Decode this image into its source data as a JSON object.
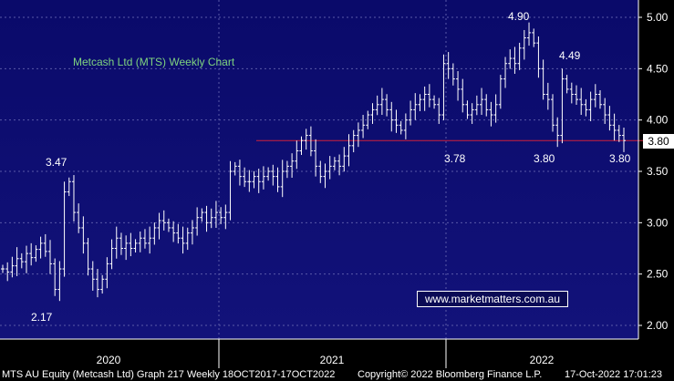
{
  "chart_data": {
    "type": "bar",
    "subtype": "ohlc-weekly",
    "title": "Metcash Ltd (MTS) Weekly Chart",
    "ylim": [
      2.0,
      5.0
    ],
    "y_ticks": [
      "5.00",
      "4.50",
      "4.00",
      "3.50",
      "3.00",
      "2.50",
      "2.00"
    ],
    "x_ticks": [
      "2020",
      "2021",
      "2022"
    ],
    "grid": true,
    "legend": "none",
    "support_level": 3.8,
    "last_price_label": "3.80",
    "annotations": [
      "3.47",
      "2.17",
      "4.90",
      "4.49",
      "3.78",
      "3.80",
      "3.80"
    ],
    "series": [
      {
        "values": [
          2.55,
          2.52,
          2.58,
          2.65,
          2.62,
          2.7,
          2.66,
          2.74,
          2.8,
          2.72,
          2.6,
          2.35,
          2.55,
          3.3,
          3.4,
          3.1,
          2.95,
          2.8,
          2.55,
          2.45,
          2.35,
          2.45,
          2.6,
          2.75,
          2.85,
          2.75,
          2.8,
          2.75,
          2.8,
          2.85,
          2.8,
          2.85,
          2.95,
          3.02,
          3.0,
          2.95,
          2.9,
          2.85,
          2.8,
          2.9,
          2.95,
          3.05,
          3.1,
          3.0,
          3.05,
          3.1,
          3.05,
          3.1,
          3.5,
          3.55,
          3.45,
          3.4,
          3.4,
          3.45,
          3.4,
          3.45,
          3.5,
          3.45,
          3.35,
          3.5,
          3.55,
          3.6,
          3.7,
          3.8,
          3.85,
          3.7,
          3.55,
          3.45,
          3.5,
          3.55,
          3.6,
          3.55,
          3.65,
          3.75,
          3.85,
          3.9,
          3.95,
          4.05,
          4.1,
          4.15,
          4.2,
          4.1,
          4.0,
          3.95,
          3.9,
          4.0,
          4.1,
          4.15,
          4.2,
          4.25,
          4.2,
          4.15,
          4.05,
          4.55,
          4.5,
          4.4,
          4.3,
          4.15,
          4.05,
          4.1,
          4.15,
          4.2,
          4.1,
          4.05,
          4.15,
          4.4,
          4.55,
          4.6,
          4.55,
          4.7,
          4.8,
          4.85,
          4.75,
          4.5,
          4.25,
          4.2,
          3.95,
          3.85,
          4.4,
          4.3,
          4.25,
          4.2,
          4.15,
          4.1,
          4.2,
          4.25,
          4.15,
          4.05,
          3.95,
          3.9,
          3.85,
          3.8
        ]
      }
    ]
  },
  "footer": {
    "left": "MTS AU Equity (Metcash Ltd) Graph 217  Weekly 18OCT2017-17OCT2022",
    "middle": "Copyright© 2022 Bloomberg Finance L.P.",
    "right": "17-Oct-2022 17:01:23"
  },
  "watermark": "www.marketmatters.com.au",
  "colors": {
    "background": "#000000",
    "panel": "#0d0d70",
    "support_line": "#d0203a",
    "bars": "#ffffff",
    "title": "#7fd47f"
  }
}
